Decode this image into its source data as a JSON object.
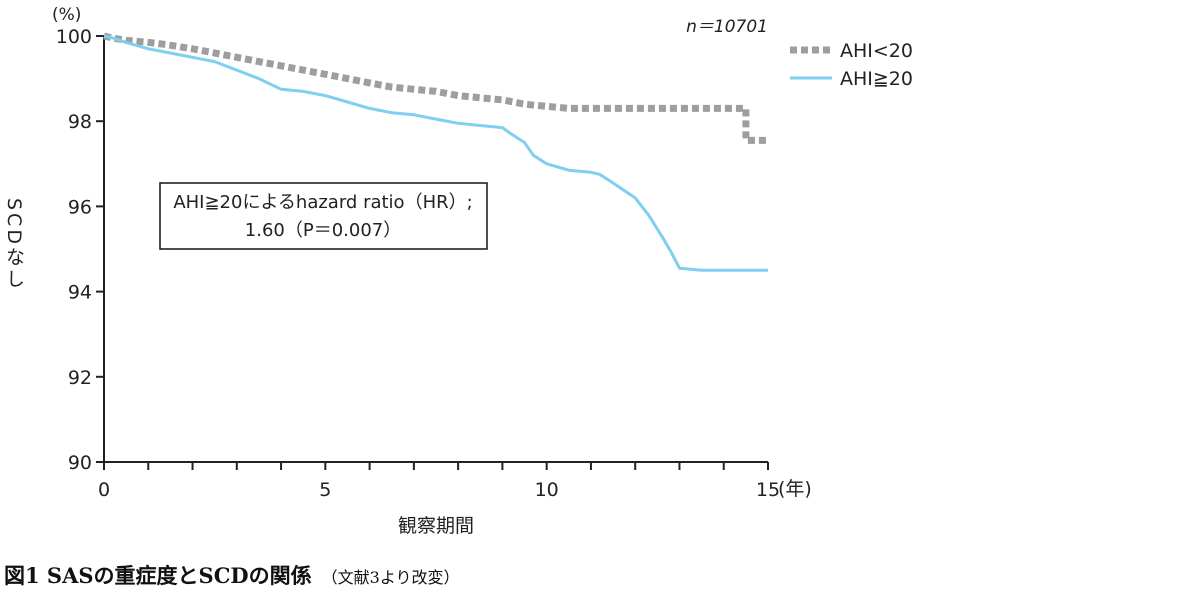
{
  "chart_data": {
    "type": "line",
    "y_unit": "(%)",
    "ylabel": "SCDなし",
    "xlabel": "観察期間",
    "x_unit": "(年)",
    "ylim": [
      90,
      100
    ],
    "xlim": [
      0,
      15
    ],
    "yticks": [
      "90",
      "92",
      "94",
      "96",
      "98",
      "100"
    ],
    "xticks": [
      "0",
      "5",
      "10",
      "15"
    ],
    "n_label": "n＝10701",
    "series": [
      {
        "name": "AHI<20",
        "style": "dotted",
        "color": "#9e9e9e",
        "x": [
          0,
          0.2,
          0.5,
          1.0,
          1.4,
          2.0,
          2.5,
          3.0,
          3.5,
          4.0,
          4.5,
          5.0,
          5.5,
          6.0,
          6.5,
          7.0,
          7.5,
          8.0,
          8.5,
          9.0,
          9.5,
          10.0,
          10.5,
          11.0,
          12.0,
          13.0,
          14.0,
          14.5,
          14.5,
          15.0
        ],
        "y": [
          100,
          99.95,
          99.9,
          99.85,
          99.8,
          99.7,
          99.6,
          99.5,
          99.4,
          99.3,
          99.2,
          99.1,
          99.0,
          98.9,
          98.8,
          98.75,
          98.7,
          98.6,
          98.55,
          98.5,
          98.4,
          98.35,
          98.3,
          98.3,
          98.3,
          98.3,
          98.3,
          98.3,
          97.55,
          97.55
        ]
      },
      {
        "name": "AHI≧20",
        "style": "solid",
        "color": "#7ecff0",
        "x": [
          0,
          0.2,
          0.5,
          1.0,
          1.5,
          2.0,
          2.5,
          3.0,
          3.5,
          4.0,
          4.5,
          5.0,
          5.5,
          6.0,
          6.5,
          7.0,
          7.5,
          8.0,
          8.5,
          9.0,
          9.2,
          9.5,
          9.7,
          10.0,
          10.5,
          11.0,
          11.2,
          11.5,
          12.0,
          12.3,
          12.6,
          12.8,
          13.0,
          13.5,
          14.0,
          15.0
        ],
        "y": [
          100,
          99.95,
          99.85,
          99.7,
          99.6,
          99.5,
          99.4,
          99.2,
          99.0,
          98.75,
          98.7,
          98.6,
          98.45,
          98.3,
          98.2,
          98.15,
          98.05,
          97.95,
          97.9,
          97.85,
          97.7,
          97.5,
          97.2,
          97.0,
          96.85,
          96.8,
          96.75,
          96.55,
          96.2,
          95.8,
          95.3,
          94.95,
          94.55,
          94.5,
          94.5,
          94.5
        ]
      }
    ],
    "annotation": {
      "line1": "AHI≧20によるhazard ratio（HR）;",
      "line2": "1.60（P＝0.007）"
    }
  },
  "caption": {
    "main": "図1 SASの重症度とSCDの関係",
    "sub": "（文献3より改変）"
  }
}
